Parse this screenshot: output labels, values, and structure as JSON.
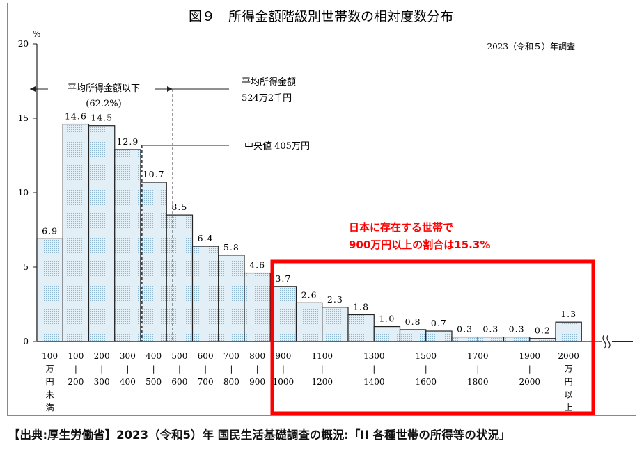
{
  "figure": {
    "title": "図９　所得金額階級別世帯数の相対度数分布",
    "survey_year": "2023（令和５）年調査",
    "y_unit": "%"
  },
  "annotations": {
    "below_avg_line1": "平均所得金額以下",
    "below_avg_line2": "(62.2%)",
    "avg_line1": "平均所得金額",
    "avg_line2": "524万2千円",
    "median": "中央値 405万円",
    "highlight_line1": "日本に存在する世帯で",
    "highlight_line2": "900万円以上の割合は15.3%"
  },
  "source": "【出典:厚生労働省】2023（令和5）年 国民生活基礎調査の概況:「II 各種世帯の所得等の状況」",
  "colors": {
    "bar_fill": "#e3eff7",
    "bar_stroke": "#222222",
    "highlight_box": "#ff0000"
  },
  "chart_data": {
    "type": "bar",
    "title": "図９　所得金額階級別世帯数の相対度数分布",
    "ylabel": "%",
    "ylim": [
      0,
      20
    ],
    "yticks": [
      0,
      5,
      10,
      15,
      20
    ],
    "categories": [
      "100万円未満",
      "100-200",
      "200-300",
      "300-400",
      "400-500",
      "500-600",
      "600-700",
      "700-800",
      "800-900",
      "900-1000",
      "1000-1100",
      "1100-1200",
      "1200-1300",
      "1300-1400",
      "1400-1500",
      "1500-1600",
      "1600-1700",
      "1700-1800",
      "1800-1900",
      "1900-2000",
      "2000万円以上"
    ],
    "values": [
      6.9,
      14.6,
      14.5,
      12.9,
      10.7,
      8.5,
      6.4,
      5.8,
      4.6,
      3.7,
      2.6,
      2.3,
      1.8,
      1.0,
      0.8,
      0.7,
      0.3,
      0.3,
      0.3,
      0.2,
      1.3
    ],
    "value_labels": [
      "6.9",
      "14.6",
      "14.5",
      "12.9",
      "10.7",
      "8.5",
      "6.4",
      "5.8",
      "4.6",
      "3.7",
      "2.6",
      "2.3",
      "1.8",
      "1.0",
      "0.8",
      "0.7",
      "0.3",
      "0.3",
      "0.3",
      "0.2",
      "1.3"
    ],
    "x_tick_labels": [
      {
        "lines": [
          "100",
          "万",
          "円",
          "未",
          "満"
        ]
      },
      {
        "lines": [
          "100",
          "|",
          "200"
        ]
      },
      {
        "lines": [
          "200",
          "|",
          "300"
        ]
      },
      {
        "lines": [
          "300",
          "|",
          "400"
        ]
      },
      {
        "lines": [
          "400",
          "|",
          "500"
        ]
      },
      {
        "lines": [
          "500",
          "|",
          "600"
        ]
      },
      {
        "lines": [
          "600",
          "|",
          "700"
        ]
      },
      {
        "lines": [
          "700",
          "|",
          "800"
        ]
      },
      {
        "lines": [
          "800",
          "|",
          "900"
        ]
      },
      {
        "lines": [
          "900",
          "|",
          "1000"
        ]
      },
      {
        "lines": [
          "1100",
          "|",
          "1200"
        ]
      },
      {
        "lines": [
          "1300",
          "|",
          "1400"
        ]
      },
      {
        "lines": [
          "1500",
          "|",
          "1600"
        ]
      },
      {
        "lines": [
          "1700",
          "|",
          "1800"
        ]
      },
      {
        "lines": [
          "1900",
          "|",
          "2000"
        ]
      },
      {
        "lines": [
          "2000",
          "万",
          "円",
          "以",
          "上"
        ]
      }
    ],
    "median_value": 405,
    "mean_value": 524.2,
    "share_below_mean": 62.2,
    "share_900_and_above": 15.3,
    "grid": false,
    "legend": "none"
  }
}
